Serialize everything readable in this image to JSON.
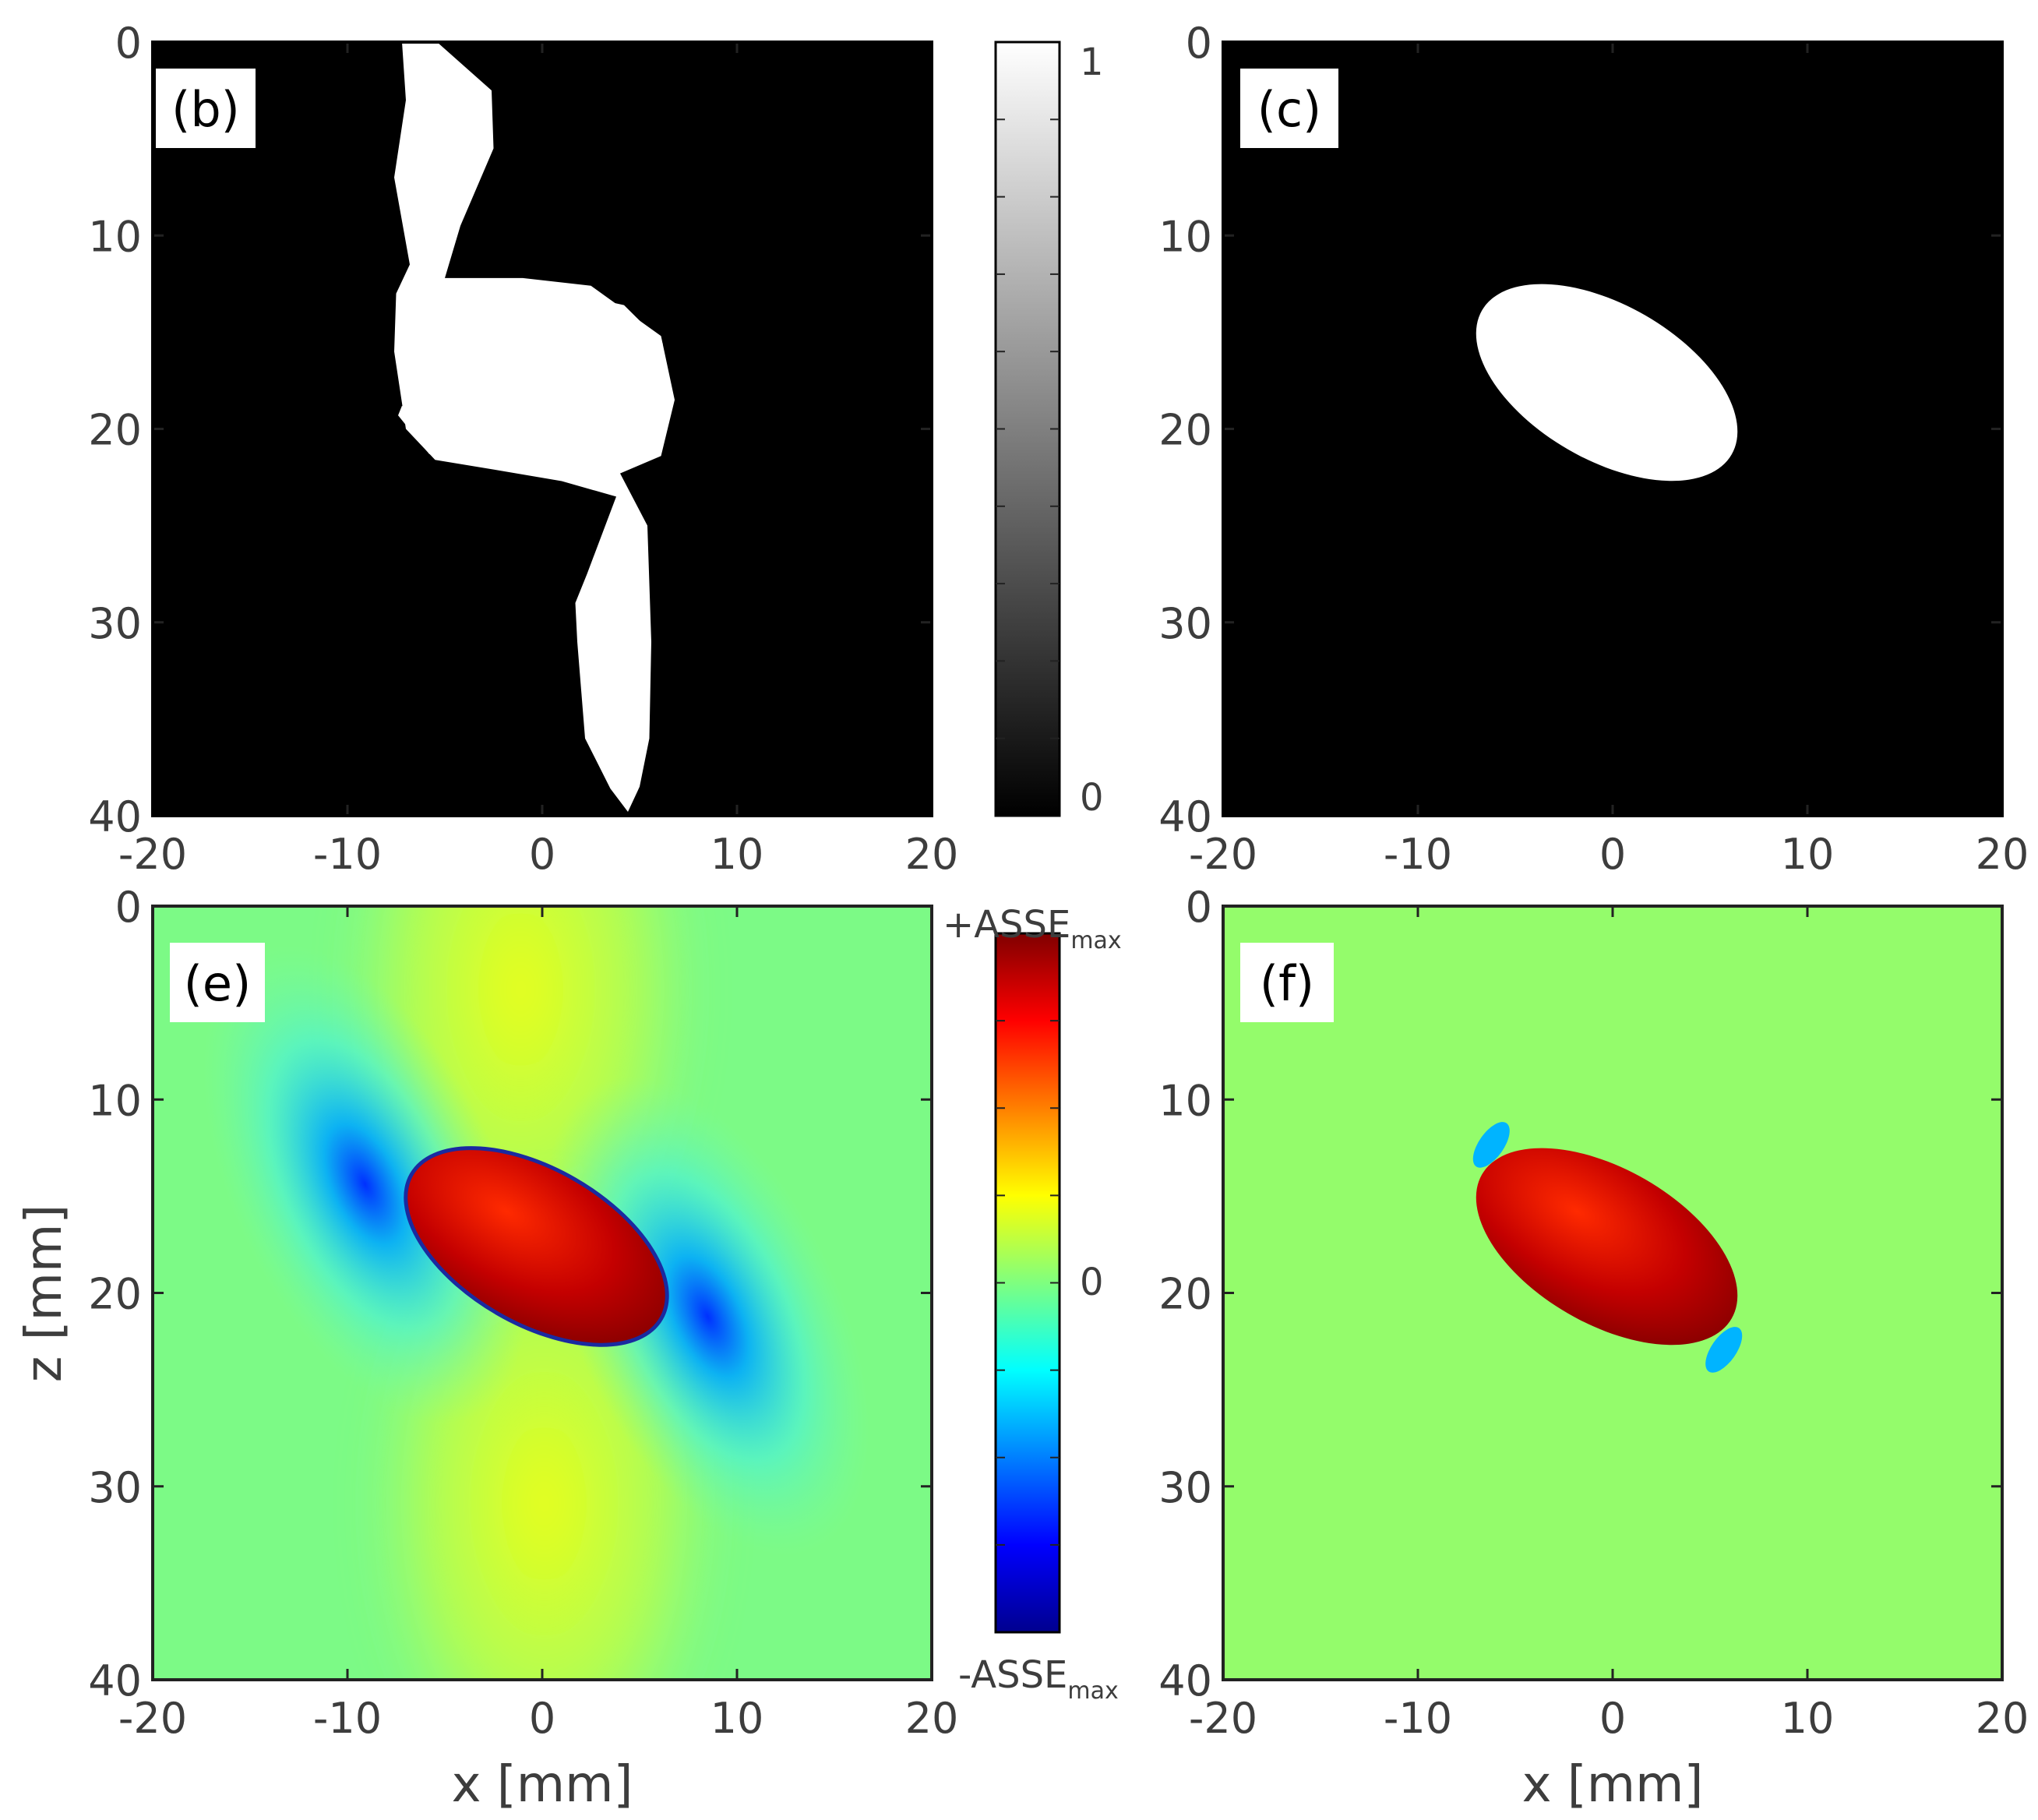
{
  "chart_data": [
    {
      "type": "heatmap",
      "panel": "(b)",
      "xlim": [
        -20,
        20
      ],
      "ylim": [
        0,
        40
      ],
      "xticks": [
        -20,
        -10,
        0,
        10,
        20
      ],
      "yticks": [
        0,
        10,
        20,
        30,
        40
      ],
      "xlabel": "",
      "ylabel": "",
      "colormap": "gray",
      "shapes": [
        {
          "kind": "polygon",
          "value": 1,
          "points": [
            [
              -7.2,
              0
            ],
            [
              -5.4,
              0
            ],
            [
              -2.6,
              2.5
            ],
            [
              -2.5,
              5.5
            ],
            [
              -4.2,
              9.5
            ],
            [
              -5.0,
              12.2
            ],
            [
              -1.0,
              12.2
            ],
            [
              2.5,
              12.6
            ],
            [
              6.1,
              15.2
            ],
            [
              6.8,
              18.5
            ],
            [
              6.1,
              21.4
            ],
            [
              4.0,
              22.3
            ],
            [
              5.4,
              25.0
            ],
            [
              5.6,
              31.0
            ],
            [
              5.5,
              36.0
            ],
            [
              5.0,
              38.5
            ],
            [
              4.4,
              39.8
            ],
            [
              3.5,
              38.6
            ],
            [
              2.2,
              36.0
            ],
            [
              1.8,
              31.0
            ],
            [
              1.7,
              29.0
            ],
            [
              2.3,
              27.5
            ],
            [
              3.8,
              23.5
            ],
            [
              1.0,
              22.7
            ],
            [
              -2.5,
              22.1
            ],
            [
              -5.5,
              21.6
            ],
            [
              -7.0,
              20.0
            ],
            [
              -7.3,
              18.0
            ],
            [
              -7.6,
              16.0
            ],
            [
              -7.5,
              13.0
            ],
            [
              -6.8,
              11.5
            ],
            [
              -7.6,
              7.0
            ],
            [
              -7.0,
              3.0
            ]
          ]
        },
        {
          "kind": "polygon",
          "value": 1,
          "points": [
            [
              1.5,
              13.0
            ],
            [
              4.2,
              13.6
            ],
            [
              6.2,
              15.6
            ],
            [
              5.8,
              15.9
            ],
            [
              3.9,
              14.1
            ],
            [
              1.5,
              13.4
            ]
          ]
        },
        {
          "kind": "polygon",
          "value": 1,
          "points": [
            [
              -7.2,
              18.8
            ],
            [
              -5.6,
              20.6
            ],
            [
              -4.0,
              21.4
            ],
            [
              -5.8,
              21.3
            ],
            [
              -7.4,
              19.3
            ]
          ]
        }
      ],
      "colorbar": {
        "range": [
          0,
          1
        ],
        "ticks": [
          0,
          1
        ]
      }
    },
    {
      "type": "heatmap",
      "panel": "(c)",
      "xlim": [
        -20,
        20
      ],
      "ylim": [
        0,
        40
      ],
      "xticks": [
        -20,
        -10,
        0,
        10,
        20
      ],
      "yticks": [
        0,
        10,
        20,
        30,
        40
      ],
      "xlabel": "",
      "ylabel": "",
      "colormap": "gray",
      "shapes": [
        {
          "kind": "ellipse",
          "value": 1,
          "cx": -0.3,
          "cy": 17.6,
          "rx": 7.4,
          "ry": 4.0,
          "angle_deg": 30
        }
      ]
    },
    {
      "type": "heatmap",
      "panel": "(e)",
      "xlim": [
        -20,
        20
      ],
      "ylim": [
        0,
        40
      ],
      "xticks": [
        -20,
        -10,
        0,
        10,
        20
      ],
      "yticks": [
        0,
        10,
        20,
        30,
        40
      ],
      "xlabel": "x [mm]",
      "ylabel": "z [mm]",
      "colormap": "jet",
      "background_value": -0.25,
      "shapes": [
        {
          "kind": "ellipse",
          "value": 0.85,
          "cx": -0.3,
          "cy": 17.6,
          "rx": 7.4,
          "ry": 4.0,
          "angle_deg": 30
        }
      ],
      "colorbar": {
        "range": [
          "-ASSE_max",
          "+ASSE_max"
        ],
        "tick_labels": [
          {
            "main": "+ASSE",
            "sub": "max"
          },
          {
            "main": "0",
            "sub": ""
          },
          {
            "main": "-ASSE",
            "sub": "max"
          }
        ]
      }
    },
    {
      "type": "heatmap",
      "panel": "(f)",
      "xlim": [
        -20,
        20
      ],
      "ylim": [
        0,
        40
      ],
      "xticks": [
        -20,
        -10,
        0,
        10,
        20
      ],
      "yticks": [
        0,
        10,
        20,
        30,
        40
      ],
      "xlabel": "x [mm]",
      "ylabel": "",
      "colormap": "jet",
      "background_value": -0.1,
      "shapes": [
        {
          "kind": "ellipse",
          "value": 0.85,
          "cx": -0.3,
          "cy": 17.6,
          "rx": 7.4,
          "ry": 4.0,
          "angle_deg": 30
        }
      ]
    }
  ],
  "colors": {
    "binary_zero": "#000000",
    "binary_one": "#ffffff",
    "jet_background_e": "#7cfa86",
    "jet_background_f": "#94fc6b",
    "jet_inclusion": "#c60000",
    "jet_inclusion_dark": "#7d0000",
    "jet_inclusion_light": "#ff1a00",
    "jet_positive_lobe": "#e6ff1e",
    "jet_negative_lobe": "#00d4ff",
    "jet_negative_core": "#0037ff",
    "axis_text": "#3d3d3d"
  }
}
